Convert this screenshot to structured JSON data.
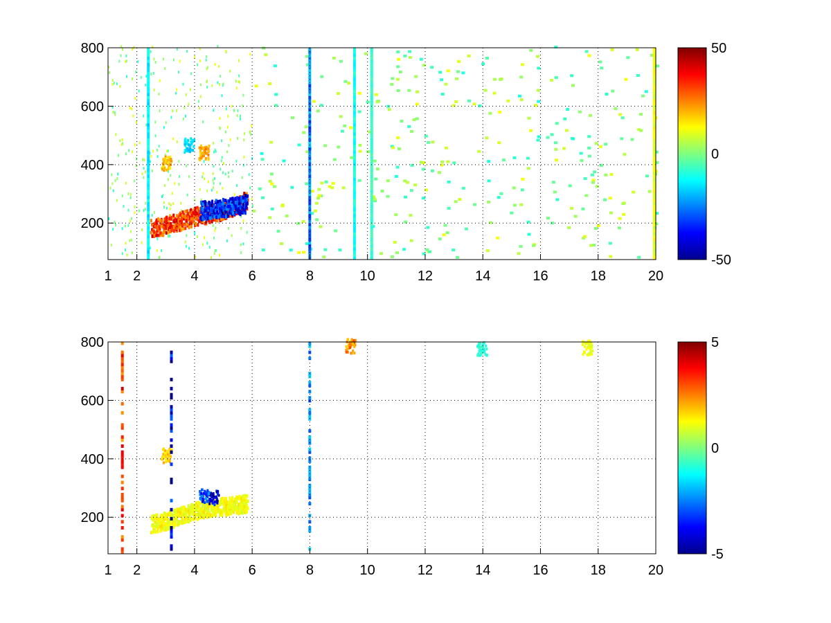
{
  "chart_data": [
    {
      "type": "heatmap",
      "title": "",
      "xlabel": "",
      "ylabel": "",
      "xlim": [
        1,
        20
      ],
      "ylim": [
        75,
        800
      ],
      "x_ticks": [
        1,
        2,
        4,
        6,
        8,
        10,
        12,
        14,
        16,
        18,
        20
      ],
      "y_ticks": [
        200,
        400,
        600,
        800
      ],
      "grid": true,
      "colormap": "jet",
      "colorbar": {
        "min": -50,
        "max": 50,
        "ticks": [
          -50,
          0,
          50
        ]
      },
      "features": [
        {
          "kind": "ridge",
          "x": [
            2.5,
            3.0,
            3.5,
            4.0,
            4.5,
            5.0,
            5.5,
            5.8
          ],
          "y": [
            175,
            185,
            200,
            215,
            225,
            235,
            255,
            270
          ],
          "value": 40
        },
        {
          "kind": "ridge",
          "x": [
            4.2,
            4.6,
            5.0,
            5.4,
            5.8
          ],
          "y": [
            235,
            240,
            245,
            250,
            260
          ],
          "value": -45
        },
        {
          "kind": "blob",
          "x": 3.0,
          "y": 400,
          "value": 22
        },
        {
          "kind": "blob",
          "x": 3.8,
          "y": 460,
          "value": -18
        },
        {
          "kind": "blob",
          "x": 4.3,
          "y": 435,
          "value": 25
        },
        {
          "kind": "vertical_band",
          "x": 7.95,
          "value": -28
        },
        {
          "kind": "vertical_band",
          "x": 9.5,
          "value": -12
        },
        {
          "kind": "vertical_band",
          "x": 2.35,
          "value": -15
        },
        {
          "kind": "vertical_band",
          "x": 10.1,
          "value": -8
        },
        {
          "kind": "vertical_band",
          "x": 19.9,
          "value": 12
        }
      ]
    },
    {
      "type": "heatmap",
      "title": "",
      "xlabel": "",
      "ylabel": "",
      "xlim": [
        1,
        20
      ],
      "ylim": [
        75,
        800
      ],
      "x_ticks": [
        1,
        2,
        4,
        6,
        8,
        10,
        12,
        14,
        16,
        18,
        20
      ],
      "y_ticks": [
        200,
        400,
        600,
        800
      ],
      "grid": true,
      "colormap": "jet",
      "colorbar": {
        "min": -5,
        "max": 5,
        "ticks": [
          -5,
          0,
          5
        ]
      },
      "features": [
        {
          "kind": "ridge",
          "x": [
            2.5,
            3.0,
            3.5,
            4.0,
            4.5,
            5.0,
            5.5,
            5.8
          ],
          "y": [
            170,
            180,
            200,
            215,
            225,
            230,
            235,
            240
          ],
          "value": 1.5
        },
        {
          "kind": "blob",
          "x": 4.65,
          "y": 262,
          "value": -4.8
        },
        {
          "kind": "blob",
          "x": 4.3,
          "y": 265,
          "value": -3.5
        },
        {
          "kind": "blob",
          "x": 3.0,
          "y": 405,
          "value": 2.0
        },
        {
          "kind": "vertical_band",
          "x": 7.95,
          "value": -2.5
        },
        {
          "kind": "vertical_band",
          "x": 3.15,
          "value": -4.5
        },
        {
          "kind": "vertical_band",
          "x": 1.45,
          "value": 3.5
        },
        {
          "kind": "blob",
          "x": 9.4,
          "y": 780,
          "value": 2.8
        },
        {
          "kind": "blob",
          "x": 17.6,
          "y": 775,
          "value": 1.2
        },
        {
          "kind": "blob",
          "x": 13.95,
          "y": 770,
          "value": -1.0
        }
      ]
    }
  ]
}
